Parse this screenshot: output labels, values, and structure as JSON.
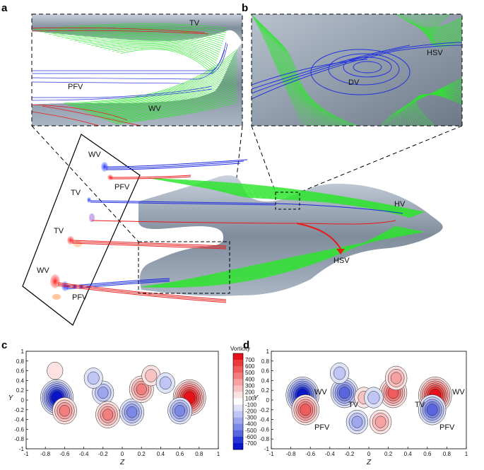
{
  "figure": {
    "panels": {
      "a": {
        "letter": "a",
        "labels": {
          "tv": "TV",
          "pfv": "PFV",
          "wv": "WV"
        }
      },
      "b": {
        "letter": "b",
        "labels": {
          "hsv": "HSV",
          "dv": "DV"
        }
      },
      "main": {
        "labels": {
          "wv_top": "WV",
          "pfv_top": "PFV",
          "tv_1": "TV",
          "tv_2": "TV",
          "wv_bottom": "WV",
          "pfv_bottom": "PFV",
          "hv": "HV",
          "hsv": "HSV"
        }
      },
      "c": {
        "letter": "c",
        "labels": {}
      },
      "d": {
        "letter": "d",
        "labels": {
          "wv_left": "WV",
          "pfv_left": "PFV",
          "tv_left": "TV",
          "tv_right": "TV",
          "wv_right": "WV",
          "pfv_right": "PFV"
        }
      }
    },
    "colors": {
      "positive": "#ee1c1c",
      "negative": "#1c2cee",
      "streamline": "#2de62d",
      "surface": "#8c99a8"
    }
  },
  "chart_data": [
    {
      "type": "heatmap",
      "panel": "c",
      "xlabel": "Z",
      "ylabel": "Y",
      "xlim": [
        -1,
        1
      ],
      "ylim": [
        -1,
        1
      ],
      "xticks": [
        "-1",
        "-0.8",
        "-0.6",
        "-0.4",
        "-0.2",
        "0",
        "0.2",
        "0.4",
        "0.6",
        "0.8",
        "1"
      ],
      "yticks": [
        "1",
        "0.8",
        "0.6",
        "0.4",
        "0.2",
        "0",
        "-0.2",
        "-0.4",
        "-0.6",
        "-0.8",
        "-1"
      ],
      "colorbar": {
        "title": "Vorticity",
        "levels": [
          "700",
          "600",
          "500",
          "400",
          "300",
          "200",
          "100",
          "-100",
          "-200",
          "-300",
          "-400",
          "-500",
          "-600",
          "-700"
        ],
        "colors": [
          "#e8101a",
          "#ec3a3a",
          "#f05c5c",
          "#f27e7e",
          "#f6a2a2",
          "#f9c2c2",
          "#fde2e2",
          "#ffffff",
          "#dfe3fa",
          "#bfc5f4",
          "#9ea7ee",
          "#7c88e6",
          "#5966e0",
          "#2436d8",
          "#0a14c8"
        ]
      },
      "vortices": [
        {
          "z": -0.68,
          "y": 0.05,
          "sign": "negative",
          "peak": 700
        },
        {
          "z": -0.6,
          "y": -0.22,
          "sign": "positive",
          "peak": 400
        },
        {
          "z": -0.2,
          "y": 0.15,
          "sign": "negative",
          "peak": 300
        },
        {
          "z": -0.3,
          "y": 0.45,
          "sign": "negative",
          "peak": 200
        },
        {
          "z": -0.15,
          "y": -0.3,
          "sign": "positive",
          "peak": 400
        },
        {
          "z": 0.1,
          "y": -0.25,
          "sign": "negative",
          "peak": 400
        },
        {
          "z": 0.2,
          "y": 0.22,
          "sign": "positive",
          "peak": 400
        },
        {
          "z": 0.3,
          "y": 0.5,
          "sign": "positive",
          "peak": 200
        },
        {
          "z": 0.7,
          "y": 0.05,
          "sign": "positive",
          "peak": 700
        },
        {
          "z": 0.6,
          "y": -0.22,
          "sign": "negative",
          "peak": 400
        },
        {
          "z": -0.7,
          "y": 0.6,
          "sign": "positive",
          "peak": 100
        },
        {
          "z": 0.45,
          "y": 0.35,
          "sign": "negative",
          "peak": 200
        }
      ]
    },
    {
      "type": "heatmap",
      "panel": "d",
      "xlabel": "Z",
      "ylabel": "Y",
      "xlim": [
        -1,
        1
      ],
      "ylim": [
        -1,
        1
      ],
      "xticks": [
        "-1",
        "-0.8",
        "-0.6",
        "-0.4",
        "-0.2",
        "0",
        "0.2",
        "0.4",
        "0.6",
        "0.8",
        "1"
      ],
      "yticks": [
        "1",
        "0.8",
        "0.6",
        "0.4",
        "0.2",
        "0",
        "-0.2",
        "-0.4",
        "-0.6",
        "-0.8",
        "-1"
      ],
      "vortices": [
        {
          "z": -0.68,
          "y": 0.1,
          "sign": "negative",
          "peak": 700
        },
        {
          "z": -0.65,
          "y": -0.2,
          "sign": "positive",
          "peak": 500
        },
        {
          "z": 0.68,
          "y": 0.1,
          "sign": "positive",
          "peak": 700
        },
        {
          "z": 0.65,
          "y": -0.2,
          "sign": "negative",
          "peak": 500
        },
        {
          "z": -0.25,
          "y": 0.15,
          "sign": "negative",
          "peak": 500
        },
        {
          "z": 0.25,
          "y": 0.15,
          "sign": "positive",
          "peak": 500
        },
        {
          "z": -0.3,
          "y": 0.55,
          "sign": "negative",
          "peak": 200
        },
        {
          "z": 0.28,
          "y": 0.45,
          "sign": "positive",
          "peak": 300
        },
        {
          "z": -0.12,
          "y": -0.45,
          "sign": "negative",
          "peak": 300
        },
        {
          "z": 0.12,
          "y": -0.45,
          "sign": "positive",
          "peak": 300
        },
        {
          "z": -0.05,
          "y": 0.05,
          "sign": "positive",
          "peak": 200
        },
        {
          "z": 0.05,
          "y": 0.05,
          "sign": "negative",
          "peak": 200
        }
      ]
    }
  ]
}
